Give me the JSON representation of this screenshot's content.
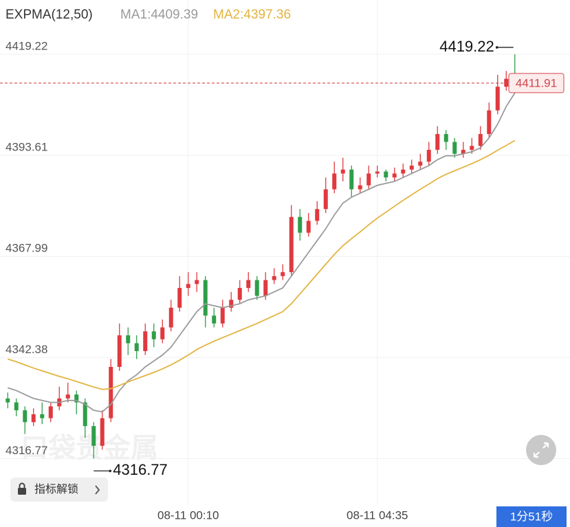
{
  "chart_data": {
    "type": "candlestick",
    "indicator": "EXPMA(12,50)",
    "categories": [
      null,
      null,
      null,
      null,
      null,
      null,
      null,
      null,
      null,
      null,
      null,
      null,
      null,
      null,
      null,
      null,
      null,
      null,
      null,
      null,
      null,
      "08-11 00:10",
      null,
      null,
      null,
      null,
      null,
      null,
      null,
      null,
      null,
      null,
      null,
      null,
      null,
      null,
      null,
      null,
      null,
      null,
      null,
      null,
      null,
      "08-11 04:35",
      null,
      null,
      null,
      null,
      null,
      null,
      null,
      null,
      null,
      null,
      null,
      null,
      null,
      null,
      null,
      null
    ],
    "open": [
      4332,
      4331,
      4329,
      4326,
      4328,
      4327,
      4330,
      4332,
      4333,
      4331,
      4325,
      4320,
      4327,
      4340,
      4348,
      4346,
      4344,
      4349,
      4347,
      4350,
      4355,
      4360,
      4361,
      4362,
      4353,
      4351,
      4355,
      4357,
      4360,
      4362,
      4358,
      4362,
      4363,
      4364,
      4378,
      4374,
      4377,
      4380,
      4385,
      4389,
      4390,
      4385,
      4386,
      4389,
      4389.5,
      4388,
      4389,
      4390,
      4391,
      4392,
      4395,
      4399,
      4397,
      4394,
      4395,
      4396,
      4399,
      4405,
      4411,
      4413
    ],
    "high": [
      4333.5,
      4332,
      4330,
      4329.5,
      4331,
      4331,
      4335,
      4336,
      4334,
      4332,
      4326,
      4329,
      4342,
      4351,
      4350,
      4348,
      4351,
      4351,
      4352,
      4357,
      4363,
      4364,
      4364,
      4363,
      4355,
      4357,
      4359,
      4362,
      4364,
      4363,
      4364,
      4365,
      4366,
      4381,
      4380,
      4379,
      4382,
      4388,
      4392,
      4393,
      4391,
      4388,
      4391,
      4391,
      4390,
      4390.5,
      4391.5,
      4392.5,
      4394,
      4397,
      4401,
      4400,
      4398,
      4397,
      4398,
      4401,
      4407,
      4414,
      4415,
      4419.22
    ],
    "low": [
      4329.5,
      4327.5,
      4323,
      4325,
      4325.5,
      4326,
      4329,
      4331,
      4328,
      4322,
      4316.77,
      4319,
      4326,
      4339,
      4343,
      4342,
      4343,
      4345,
      4346,
      4349,
      4354,
      4358,
      4359,
      4350,
      4350,
      4350,
      4354,
      4356,
      4359,
      4357,
      4357,
      4361,
      4362,
      4363,
      4372,
      4373,
      4376,
      4379,
      4384,
      4387,
      4383,
      4384,
      4385,
      4388,
      4387,
      4387,
      4388,
      4389,
      4390,
      4391,
      4394,
      4395,
      4393,
      4393,
      4394,
      4395,
      4398,
      4404,
      4410,
      4410
    ],
    "close": [
      4331,
      4329,
      4326,
      4328,
      4327,
      4330,
      4332,
      4333,
      4331,
      4325,
      4320,
      4327,
      4340,
      4348,
      4346,
      4344,
      4349,
      4347,
      4350,
      4355,
      4360,
      4361,
      4362,
      4353,
      4351,
      4355,
      4357,
      4360,
      4362,
      4358,
      4362,
      4363,
      4364,
      4378,
      4374,
      4377,
      4380,
      4385,
      4389,
      4390,
      4385,
      4386,
      4389,
      4389.5,
      4388,
      4389,
      4390,
      4391,
      4392,
      4395,
      4399,
      4397,
      4394,
      4395,
      4396,
      4399,
      4405,
      4411,
      4413,
      4411.91
    ],
    "up_color": "#e0393e",
    "down_color": "#2e9e48",
    "overlays": [
      {
        "label": "MA1:4409.39",
        "color": "#9a9a9a",
        "values": [
          4334.7,
          4334,
          4333,
          4332,
          4331.5,
          4331,
          4331,
          4331.5,
          4331.5,
          4330.5,
          4329,
          4328.6,
          4330.5,
          4334,
          4336.5,
          4338,
          4340,
          4341.5,
          4343,
          4345,
          4348,
          4351,
          4354,
          4356,
          4355.5,
          4355,
          4355.5,
          4356,
          4357,
          4357.5,
          4358,
          4359,
          4360,
          4363,
          4366,
          4369,
          4372,
          4375,
          4378.5,
          4381.5,
          4383,
          4384,
          4385,
          4386,
          4386.5,
          4387,
          4388,
          4389,
          4390,
          4391,
          4392.5,
          4393.5,
          4393.5,
          4394,
          4394.5,
          4395.5,
          4398,
          4401.5,
          4406,
          4409.39
        ]
      },
      {
        "label": "MA2:4397.36",
        "color": "#e2b440",
        "values": [
          4342,
          4341.3,
          4340.5,
          4339.7,
          4339,
          4338.3,
          4337.6,
          4337,
          4336.3,
          4335.6,
          4334.9,
          4334.3,
          4334.5,
          4335.3,
          4336.2,
          4337,
          4337.8,
          4338.6,
          4339.5,
          4340.5,
          4341.7,
          4343,
          4344.4,
          4345.5,
          4346.5,
          4347.4,
          4348.3,
          4349.2,
          4350.1,
          4351,
          4352,
          4353,
          4354,
          4356,
          4358.5,
          4361,
          4363.5,
          4366,
          4368.5,
          4370.7,
          4372.5,
          4374.2,
          4376,
          4377.7,
          4379.2,
          4380.7,
          4382.2,
          4383.6,
          4385,
          4386.3,
          4387.7,
          4388.8,
          4389.7,
          4390.6,
          4391.5,
          4392.5,
          4393.6,
          4394.9,
          4396.1,
          4397.36
        ]
      }
    ],
    "ylim": [
      4305,
      4426
    ],
    "yticks": [
      4419.22,
      4393.61,
      4367.99,
      4342.38,
      4316.77
    ],
    "grid": true,
    "last_price_color": "#d0454a",
    "unlock_button": "指标解锁",
    "countdown": "1分51秒",
    "watermark": "口袋贵金属"
  }
}
